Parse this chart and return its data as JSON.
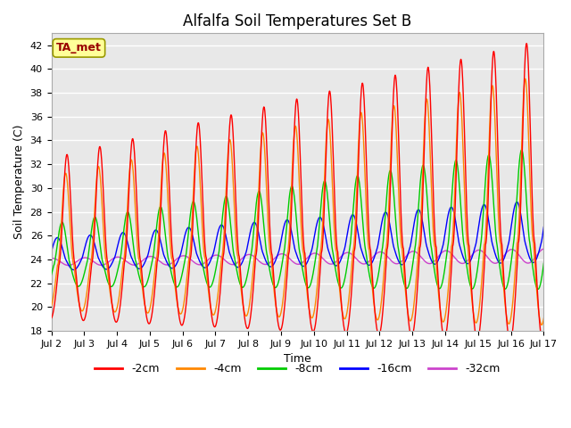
{
  "title": "Alfalfa Soil Temperatures Set B",
  "xlabel": "Time",
  "ylabel": "Soil Temperature (C)",
  "ylim": [
    18,
    43
  ],
  "yticks": [
    18,
    20,
    22,
    24,
    26,
    28,
    30,
    32,
    34,
    36,
    38,
    40,
    42
  ],
  "xtick_labels": [
    "Jul 2",
    "Jul 3",
    "Jul 4",
    "Jul 5",
    "Jul 6",
    "Jul 7",
    "Jul 8",
    "Jul 9",
    "Jul 10",
    "Jul 11",
    "Jul 12",
    "Jul 13",
    "Jul 14",
    "Jul 15",
    "Jul 16",
    "Jul 17"
  ],
  "legend_labels": [
    "-2cm",
    "-4cm",
    "-8cm",
    "-16cm",
    "-32cm"
  ],
  "legend_colors": [
    "#ff0000",
    "#ff8800",
    "#00cc00",
    "#0000ff",
    "#cc44cc"
  ],
  "annotation_text": "TA_met",
  "annotation_color": "#990000",
  "annotation_bg": "#ffff99",
  "annotation_edge": "#999900",
  "plot_bg": "#e8e8e8",
  "grid_color": "#ffffff",
  "title_fontsize": 12,
  "axis_label_fontsize": 9,
  "tick_fontsize": 8
}
